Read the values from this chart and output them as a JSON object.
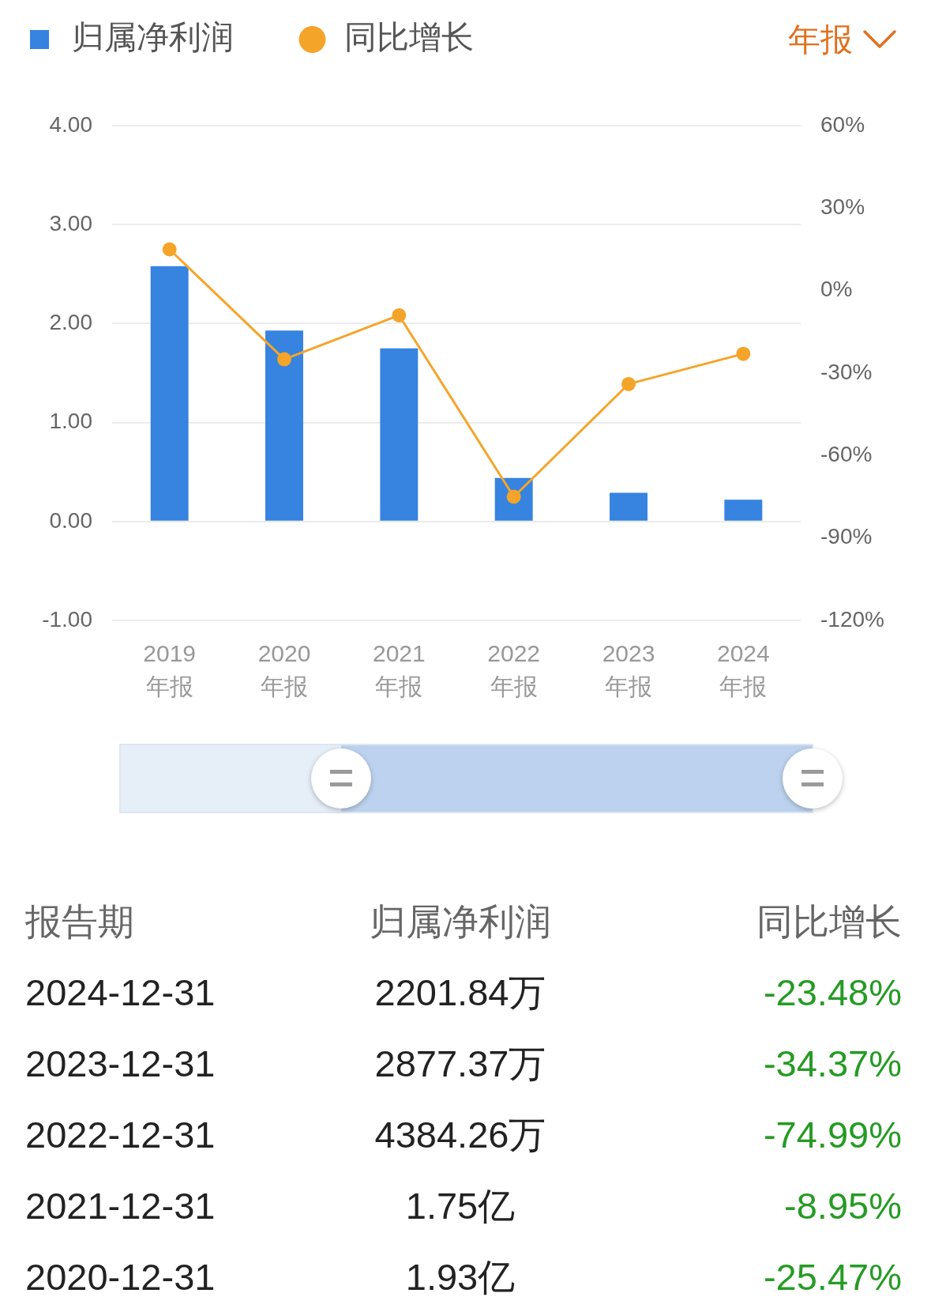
{
  "chart_data": {
    "type": "bar",
    "categories": [
      "2019\n年报",
      "2020\n年报",
      "2021\n年报",
      "2022\n年报",
      "2023\n年报",
      "2024\n年报"
    ],
    "series": [
      {
        "name": "归属净利润",
        "color": "#3683e0",
        "values": [
          2.58,
          1.93,
          1.75,
          0.44,
          0.29,
          0.22
        ]
      },
      {
        "name": "同比增长",
        "type": "line",
        "axis": "y2",
        "color": "#f5a42a",
        "values": [
          15,
          -25,
          -9,
          -75,
          -34,
          -23
        ]
      }
    ],
    "ylim": [
      -1,
      4
    ],
    "yticks": [
      {
        "value": -1,
        "label": "-1.00"
      },
      {
        "value": 0,
        "label": "0.00"
      },
      {
        "value": 1,
        "label": "1.00"
      },
      {
        "value": 2,
        "label": "2.00"
      },
      {
        "value": 3,
        "label": "3.00"
      },
      {
        "value": 4,
        "label": "4.00"
      }
    ],
    "y2lim": [
      -120,
      60
    ],
    "y2ticks": [
      {
        "value": -120,
        "label": "-120%"
      },
      {
        "value": -90,
        "label": "-90%"
      },
      {
        "value": -60,
        "label": "-60%"
      },
      {
        "value": -30,
        "label": "-30%"
      },
      {
        "value": 0,
        "label": "0%"
      },
      {
        "value": 30,
        "label": "30%"
      },
      {
        "value": 60,
        "label": "60%"
      }
    ],
    "grid": "y",
    "legend": "top left",
    "marker": "circle",
    "annotations": [
      "年报",
      "报告期",
      "2024-12-31",
      "2201.84万",
      "-23.48%",
      "2023-12-31",
      "2877.37万",
      "-34.37%",
      "2022-12-31",
      "4384.26万",
      "-74.99%",
      "2021-12-31",
      "1.75亿",
      "-8.95%",
      "2020-12-31",
      "1.93亿",
      "-25.47%"
    ]
  }
}
